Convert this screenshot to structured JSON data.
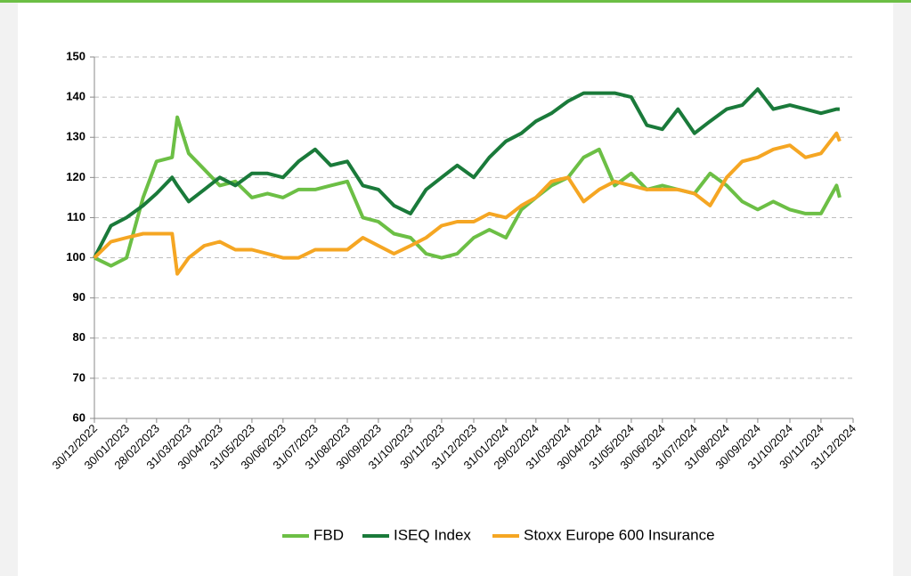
{
  "chart_data": {
    "type": "line",
    "x": [
      "30/12/2022",
      "15/01/2023",
      "30/01/2023",
      "15/02/2023",
      "28/02/2023",
      "15/03/2023",
      "20/03/2023",
      "31/03/2023",
      "15/04/2023",
      "30/04/2023",
      "15/05/2023",
      "31/05/2023",
      "15/06/2023",
      "30/06/2023",
      "15/07/2023",
      "31/07/2023",
      "15/08/2023",
      "31/08/2023",
      "15/09/2023",
      "30/09/2023",
      "15/10/2023",
      "31/10/2023",
      "15/11/2023",
      "30/11/2023",
      "15/12/2023",
      "31/12/2023",
      "15/01/2024",
      "31/01/2024",
      "15/02/2024",
      "29/02/2024",
      "15/03/2024",
      "31/03/2024",
      "15/04/2024",
      "30/04/2024",
      "15/05/2024",
      "31/05/2024",
      "15/06/2024",
      "30/06/2024",
      "15/07/2024",
      "31/07/2024",
      "15/08/2024",
      "31/08/2024",
      "15/09/2024",
      "30/09/2024",
      "15/10/2024",
      "31/10/2024",
      "15/11/2024",
      "30/11/2024",
      "15/12/2024",
      "18/12/2024"
    ],
    "series": [
      {
        "name": "FBD",
        "color": "#6cbf45",
        "values": [
          100,
          98,
          100,
          115,
          124,
          125,
          135,
          126,
          122,
          118,
          119,
          115,
          116,
          115,
          117,
          117,
          118,
          119,
          110,
          109,
          106,
          105,
          101,
          100,
          101,
          105,
          107,
          105,
          112,
          115,
          118,
          120,
          125,
          127,
          118,
          121,
          117,
          118,
          117,
          116,
          121,
          118,
          114,
          112,
          114,
          112,
          111,
          111,
          118,
          115
        ]
      },
      {
        "name": "ISEQ Index",
        "color": "#1a7a3a",
        "values": [
          100,
          108,
          110,
          113,
          116,
          120,
          118,
          114,
          117,
          120,
          118,
          121,
          121,
          120,
          124,
          127,
          123,
          124,
          118,
          117,
          113,
          111,
          117,
          120,
          123,
          120,
          125,
          129,
          131,
          134,
          136,
          139,
          141,
          141,
          141,
          140,
          133,
          132,
          137,
          131,
          134,
          137,
          138,
          142,
          137,
          138,
          137,
          136,
          137,
          137
        ]
      },
      {
        "name": "Stoxx Europe 600 Insurance",
        "color": "#f5a623",
        "values": [
          100,
          104,
          105,
          106,
          106,
          106,
          96,
          100,
          103,
          104,
          102,
          102,
          101,
          100,
          100,
          102,
          102,
          102,
          105,
          103,
          101,
          103,
          105,
          108,
          109,
          109,
          111,
          110,
          113,
          115,
          119,
          120,
          114,
          117,
          119,
          118,
          117,
          117,
          117,
          116,
          113,
          120,
          124,
          125,
          127,
          128,
          125,
          126,
          131,
          129
        ]
      }
    ],
    "xlim": [
      "30/12/2022",
      "31/12/2024"
    ],
    "xticks": [
      "30/12/2022",
      "30/01/2023",
      "28/02/2023",
      "31/03/2023",
      "30/04/2023",
      "31/05/2023",
      "30/06/2023",
      "31/07/2023",
      "31/08/2023",
      "30/09/2023",
      "31/10/2023",
      "30/11/2023",
      "31/12/2023",
      "31/01/2024",
      "29/02/2024",
      "31/03/2024",
      "30/04/2024",
      "31/05/2024",
      "30/06/2024",
      "31/07/2024",
      "31/08/2024",
      "30/09/2024",
      "31/10/2024",
      "30/11/2024",
      "31/12/2024"
    ],
    "ylim": [
      60,
      150
    ],
    "yticks": [
      60,
      70,
      80,
      90,
      100,
      110,
      120,
      130,
      140,
      150
    ],
    "grid": true,
    "legend": "bottom"
  }
}
